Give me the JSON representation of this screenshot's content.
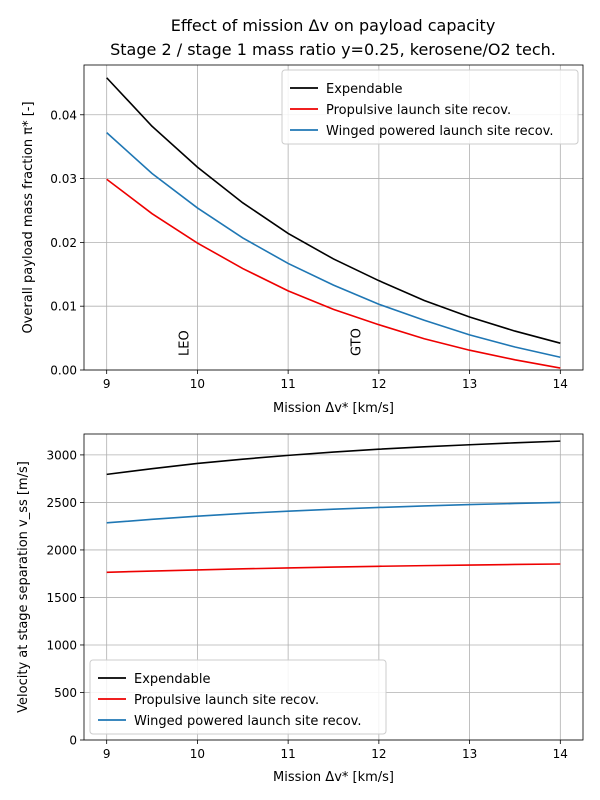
{
  "figure": {
    "title_line1": "Effect of mission Δv on payload capacity",
    "title_line2": "Stage 2 / stage 1 mass ratio y=0.25, kerosene/O2 tech."
  },
  "chart_data": [
    {
      "type": "line",
      "xlabel": "Mission Δv* [km/s]",
      "ylabel": "Overall payload mass fraction π* [-]",
      "xlim": [
        8.75,
        14.25
      ],
      "ylim": [
        0.0,
        0.0478
      ],
      "xticks": [
        9,
        10,
        11,
        12,
        13,
        14
      ],
      "xtick_labels": [
        "9",
        "10",
        "11",
        "12",
        "13",
        "14"
      ],
      "yticks": [
        0.0,
        0.01,
        0.02,
        0.03,
        0.04
      ],
      "ytick_labels": [
        "0.00",
        "0.01",
        "0.02",
        "0.03",
        "0.04"
      ],
      "grid": true,
      "legend": "top-right",
      "annotations": [
        {
          "text": "LEO",
          "x": 9.9,
          "y": 0.0022
        },
        {
          "text": "GTO",
          "x": 11.8,
          "y": 0.0022
        }
      ],
      "x": [
        9,
        9.5,
        10,
        10.5,
        11,
        11.5,
        12,
        12.5,
        13,
        13.5,
        14
      ],
      "series": [
        {
          "name": "Expendable",
          "color": "#000000",
          "values": [
            0.0458,
            0.0382,
            0.0318,
            0.0262,
            0.0214,
            0.0174,
            0.014,
            0.0109,
            0.0083,
            0.0061,
            0.0042
          ]
        },
        {
          "name": "Propulsive launch site recov.",
          "color": "#ee0000",
          "values": [
            0.0299,
            0.0245,
            0.0199,
            0.0159,
            0.0124,
            0.0095,
            0.0071,
            0.0049,
            0.0031,
            0.0016,
            0.0003
          ]
        },
        {
          "name": "Winged powered launch site recov.",
          "color": "#1f77b4",
          "values": [
            0.0372,
            0.0308,
            0.0254,
            0.0207,
            0.0167,
            0.0133,
            0.0103,
            0.0078,
            0.0055,
            0.0036,
            0.002
          ]
        }
      ]
    },
    {
      "type": "line",
      "xlabel": "Mission Δv* [km/s]",
      "ylabel": "Velocity at stage separation v_ss [m/s]",
      "xlim": [
        8.75,
        14.25
      ],
      "ylim": [
        0,
        3220
      ],
      "xticks": [
        9,
        10,
        11,
        12,
        13,
        14
      ],
      "xtick_labels": [
        "9",
        "10",
        "11",
        "12",
        "13",
        "14"
      ],
      "yticks": [
        0,
        500,
        1000,
        1500,
        2000,
        2500,
        3000
      ],
      "ytick_labels": [
        "0",
        "500",
        "1000",
        "1500",
        "2000",
        "2500",
        "3000"
      ],
      "grid": true,
      "legend": "bottom-left",
      "x": [
        9,
        9.5,
        10,
        10.5,
        11,
        11.5,
        12,
        12.5,
        13,
        13.5,
        14
      ],
      "series": [
        {
          "name": "Expendable",
          "color": "#000000",
          "values": [
            2795,
            2855,
            2910,
            2955,
            2995,
            3030,
            3060,
            3085,
            3107,
            3127,
            3145
          ]
        },
        {
          "name": "Propulsive launch site recov.",
          "color": "#ee0000",
          "values": [
            1765,
            1778,
            1790,
            1801,
            1811,
            1820,
            1828,
            1835,
            1841,
            1847,
            1852
          ]
        },
        {
          "name": "Winged powered launch site recov.",
          "color": "#1f77b4",
          "values": [
            2285,
            2322,
            2355,
            2384,
            2408,
            2429,
            2447,
            2463,
            2477,
            2489,
            2500
          ]
        }
      ]
    }
  ]
}
